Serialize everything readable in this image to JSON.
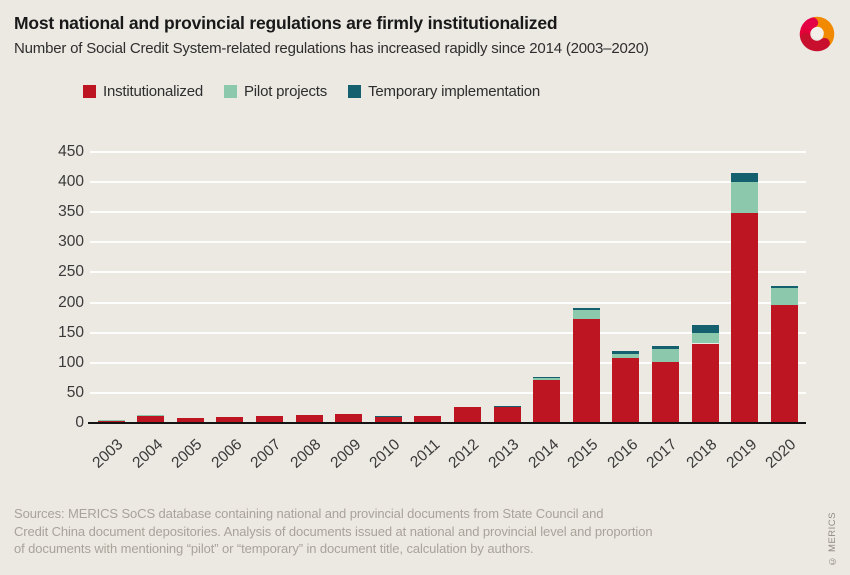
{
  "header": {
    "title": "Most national and provincial regulations are firmly institutionalized",
    "subtitle": "Number of Social Credit System-related regulations has increased rapidly since 2014 (2003–2020)"
  },
  "legend": [
    {
      "label": "Institutionalized",
      "color": "#be1522"
    },
    {
      "label": "Pilot projects",
      "color": "#8cc9ac"
    },
    {
      "label": "Temporary implementation",
      "color": "#14606f"
    }
  ],
  "chart_data": {
    "type": "bar",
    "stacked": true,
    "title": "Most national and provincial regulations are firmly institutionalized",
    "subtitle": "Number of Social Credit System-related regulations has increased rapidly since 2014 (2003–2020)",
    "categories": [
      "2003",
      "2004",
      "2005",
      "2006",
      "2007",
      "2008",
      "2009",
      "2010",
      "2011",
      "2012",
      "2013",
      "2014",
      "2015",
      "2016",
      "2017",
      "2018",
      "2019",
      "2020"
    ],
    "series": [
      {
        "name": "Institutionalized",
        "color": "#be1522",
        "values": [
          4,
          12,
          9,
          10,
          11,
          13,
          15,
          11,
          12,
          27,
          28,
          71,
          173,
          108,
          102,
          132,
          349,
          196
        ]
      },
      {
        "name": "Pilot projects",
        "color": "#8cc9ac",
        "values": [
          1,
          1,
          0,
          0,
          0,
          0,
          0,
          0,
          0,
          0,
          0,
          3,
          14,
          7,
          21,
          18,
          51,
          28
        ]
      },
      {
        "name": "Temporary implementation",
        "color": "#14606f",
        "values": [
          0,
          0,
          0,
          0,
          0,
          0,
          0,
          1,
          0,
          0,
          1,
          2,
          4,
          4,
          5,
          13,
          15,
          4
        ]
      }
    ],
    "xlabel": "",
    "ylabel": "",
    "ylim": [
      0,
      450
    ],
    "yticks": [
      0,
      50,
      100,
      150,
      200,
      250,
      300,
      350,
      400,
      450
    ],
    "grid": "horizontal-white",
    "legend_position": "top-left",
    "background": "#ece8e2"
  },
  "footer": {
    "source_line_1": "Sources: MERICS SoCS database containing national and provincial documents from State Council and",
    "source_line_2": "Credit China document depositories. Analysis of documents issued at national and provincial level and proportion",
    "source_line_3": "of documents with mentioning “pilot” or “temporary” in document title, calculation by authors.",
    "copyright": "© MERICS"
  },
  "branding": {
    "logo_name": "merics-logo",
    "logo_colors": {
      "orange": "#f18a00",
      "magenta": "#e40045",
      "red": "#c8102e"
    }
  }
}
